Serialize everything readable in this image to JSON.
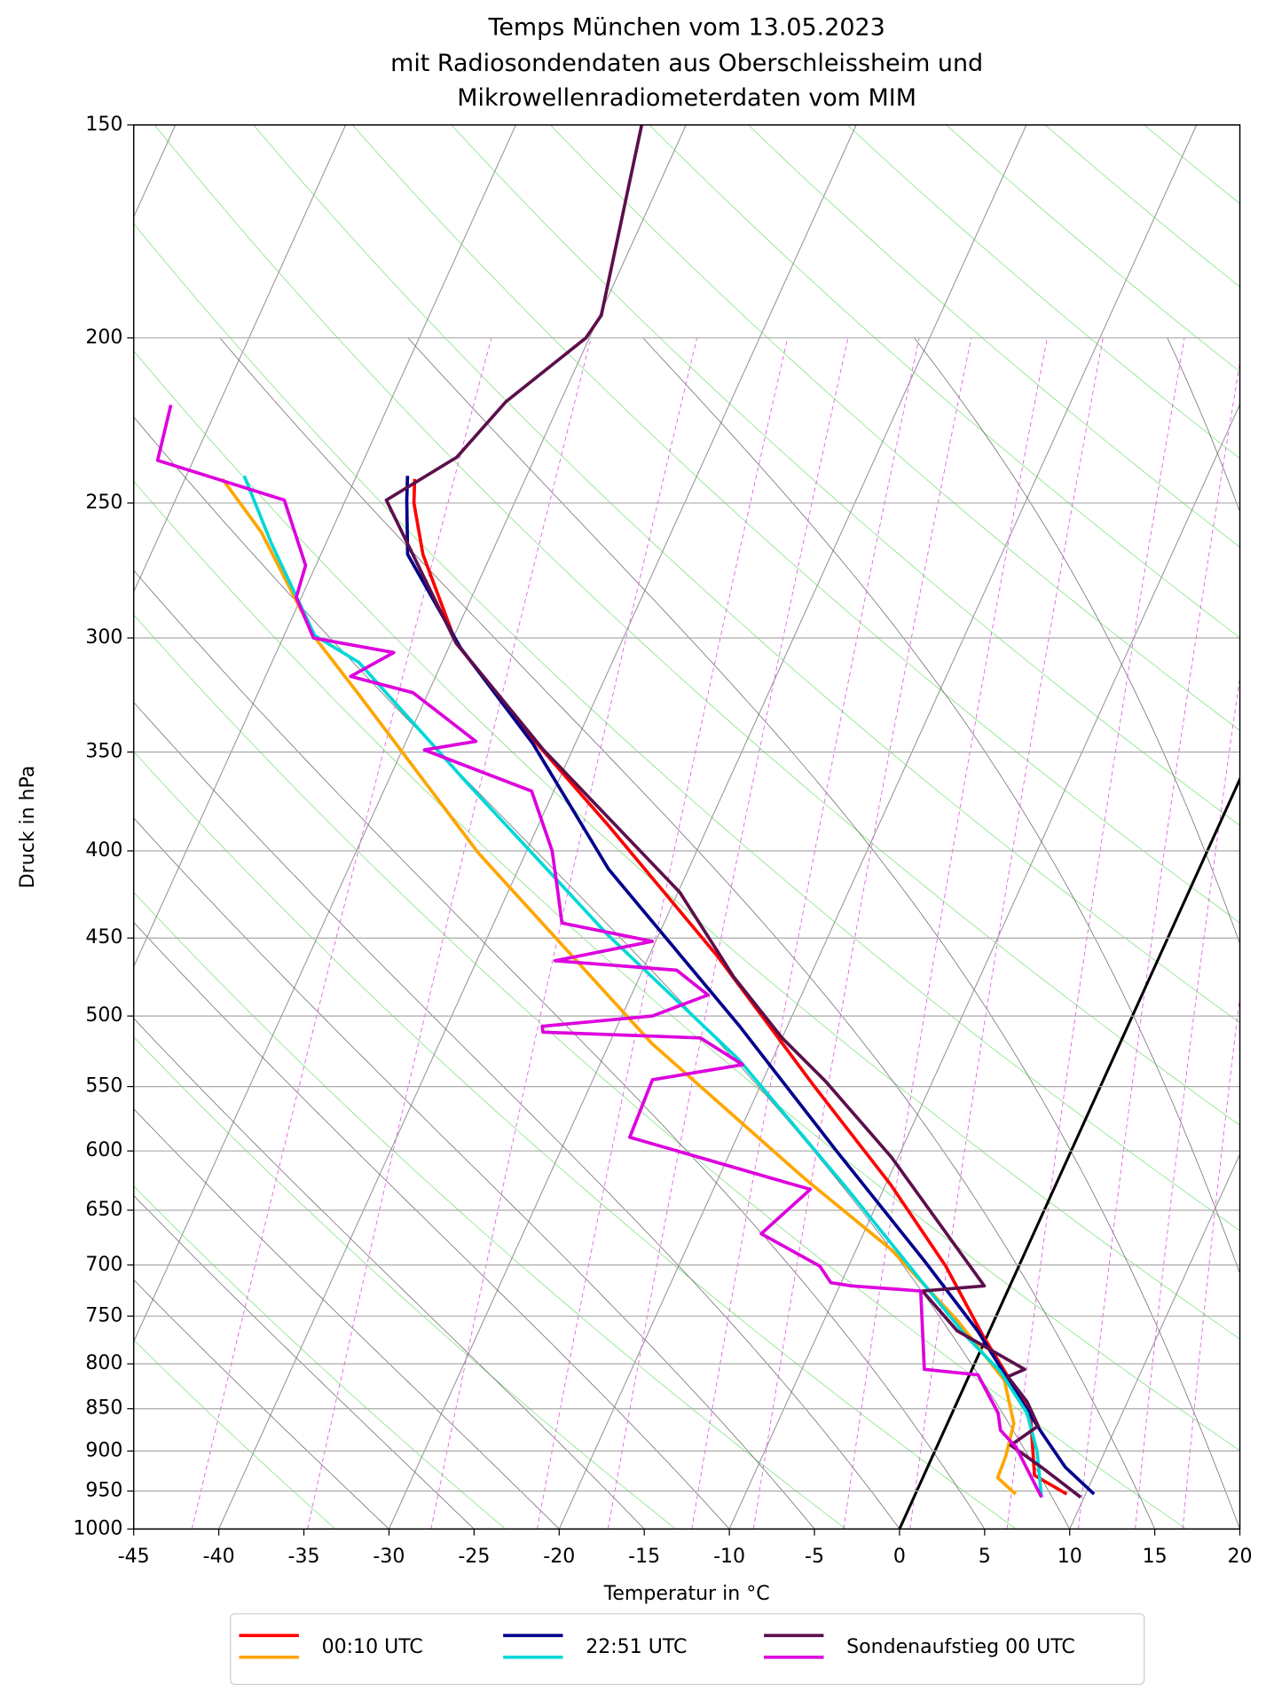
{
  "chart_data": {
    "type": "skewt",
    "title": [
      "Temps München vom 13.05.2023",
      "mit Radiosondendaten aus Oberschleissheim und",
      "Mikrowellenradiometerdaten vom MIM"
    ],
    "xlabel": "Temperatur in °C",
    "ylabel": "Druck in hPa",
    "xlim": [
      -45,
      20
    ],
    "xticks": [
      -45,
      -40,
      -35,
      -30,
      -25,
      -20,
      -15,
      -10,
      -5,
      0,
      5,
      10,
      15,
      20
    ],
    "ylim": [
      1000,
      150
    ],
    "yticks": [
      1000,
      950,
      900,
      850,
      800,
      750,
      700,
      650,
      600,
      550,
      500,
      450,
      400,
      350,
      300,
      250,
      200,
      150
    ],
    "log_y": true,
    "grid": true,
    "legend": "bottom",
    "series": [
      {
        "name": "00:10 UTC",
        "lines": [
          {
            "color": "#ff0000",
            "pressure": [
              954,
              930,
              855,
              771,
              701,
              628,
              550,
              461,
              387,
              344,
              302,
              268,
              250,
              242
            ],
            "temperature": [
              8.9,
              6.5,
              4.6,
              -0.2,
              -4.3,
              -9.7,
              -16.8,
              -26.0,
              -35.8,
              -42.6,
              -49.7,
              -54.0,
              -55.9,
              -56.5
            ]
          },
          {
            "color": "#ffa500",
            "pressure": [
              954,
              933,
              906,
              867,
              818,
              754,
              686,
              623,
              519,
              401,
              324,
              300,
              260,
              242
            ],
            "temperature": [
              5.9,
              4.4,
              4.3,
              3.9,
              2.2,
              -2.2,
              -7.9,
              -14.9,
              -27.5,
              -42.8,
              -54.0,
              -58.1,
              -64.1,
              -67.8
            ]
          }
        ]
      },
      {
        "name": "22:51 UTC",
        "lines": [
          {
            "color": "#00008b",
            "pressure": [
              954,
              920,
              880,
              842,
              765,
              696,
              601,
              507,
              410,
              346,
              304,
              268,
              249,
              241
            ],
            "temperature": [
              10.5,
              8.1,
              5.9,
              3.8,
              -0.7,
              -5.7,
              -13.7,
              -22.8,
              -34.7,
              -42.5,
              -49.3,
              -54.9,
              -56.4,
              -57.0
            ]
          },
          {
            "color": "#00d8d8",
            "pressure": [
              958,
              900,
              855,
              808,
              771,
              717,
              632,
              530,
              448,
              365,
              310,
              299,
              264,
              241
            ],
            "temperature": [
              7.5,
              6.0,
              4.4,
              1.7,
              -1.2,
              -5.2,
              -12.1,
              -22.0,
              -33.0,
              -45.3,
              -54.9,
              -58.2,
              -63.2,
              -66.6
            ]
          }
        ]
      },
      {
        "name": "Sondenaufstieg 00 UTC",
        "lines": [
          {
            "color": "#5c0f4c",
            "pressure": [
              958,
              920,
              893,
              870,
              842,
              814,
              806,
              765,
              725,
              720,
              605,
              546,
              515,
              474,
              465,
              423,
              349,
              302,
              249,
              235,
              218,
              200,
              194,
              150
            ],
            "temperature": [
              9.8,
              6.7,
              4.3,
              5.4,
              4.1,
              2.3,
              3.1,
              -1.9,
              -5.0,
              -1.5,
              -10.4,
              -16.3,
              -20.0,
              -24.5,
              -25.4,
              -29.9,
              -41.7,
              -49.7,
              -57.6,
              -54.6,
              -53.2,
              -50.2,
              -49.9,
              -52.6
            ]
          },
          {
            "color": "#dd00dd",
            "pressure": [
              958,
              920,
              896,
              875,
              855,
              812,
              806,
              725,
              720,
              717,
              701,
              671,
              632,
              589,
              545,
              534,
              515,
              511,
              507,
              500,
              486,
              470,
              464,
              452,
              441,
              424,
              400,
              369,
              349,
              345,
              323,
              316,
              306,
              300,
              284,
              272,
              249,
              236,
              219
            ],
            "temperature": [
              7.5,
              5.8,
              4.7,
              3.3,
              2.7,
              0.5,
              -2.8,
              -5.1,
              -9.3,
              -10.6,
              -11.7,
              -16.0,
              -14.3,
              -26.3,
              -26.5,
              -21.6,
              -24.8,
              -34.2,
              -34.4,
              -28.2,
              -25.5,
              -28.0,
              -35.4,
              -30.2,
              -36.0,
              -37.0,
              -38.5,
              -41.3,
              -48.7,
              -45.9,
              -50.9,
              -55.0,
              -53.1,
              -58.2,
              -60.3,
              -60.6,
              -63.6,
              -72.1,
              -72.8
            ]
          }
        ]
      }
    ]
  }
}
